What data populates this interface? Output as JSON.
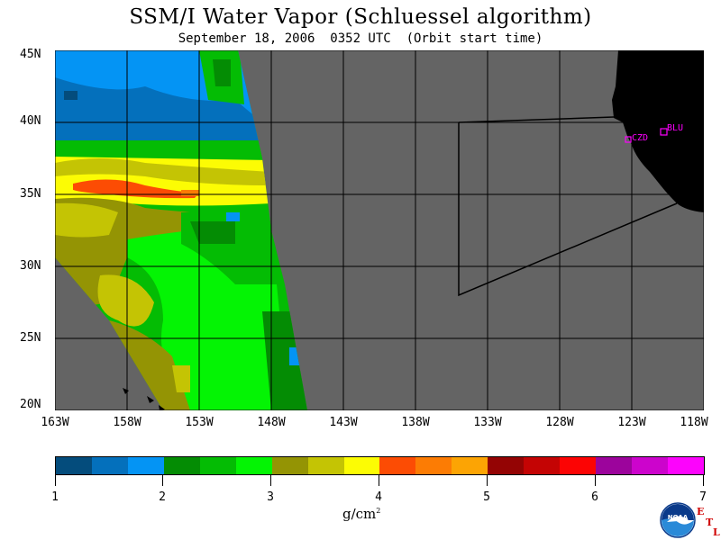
{
  "title": "SSM/I Water Vapor (Schluessel algorithm)",
  "subtitle": "September 18, 2006  0352 UTC  (Orbit start time)",
  "map": {
    "lat_labels": [
      "45N",
      "40N",
      "35N",
      "30N",
      "25N",
      "20N"
    ],
    "lon_labels": [
      "163W",
      "158W",
      "153W",
      "148W",
      "143W",
      "138W",
      "133W",
      "128W",
      "123W",
      "118W"
    ],
    "stations": [
      "CZD",
      "BLU"
    ],
    "colors": {
      "land": "#000000",
      "no_data": "#646464",
      "grid": "#000000",
      "station": "#ff00ff"
    }
  },
  "colorbar": {
    "ticks": [
      "1",
      "2",
      "3",
      "4",
      "5",
      "6",
      "7"
    ],
    "units": "g/cm",
    "units_sup": "2",
    "colors": [
      "#044c7c",
      "#0470bc",
      "#0494f4",
      "#048c04",
      "#04bc04",
      "#04f404",
      "#949404",
      "#c4c404",
      "#fcfc04",
      "#fc4c04",
      "#fc7c04",
      "#fca404",
      "#940404",
      "#c40404",
      "#fc0404",
      "#9c049c",
      "#cc04cc",
      "#fc04fc"
    ]
  },
  "logo": {
    "name": "NOAA",
    "etl": [
      "E",
      "T",
      "L"
    ]
  }
}
